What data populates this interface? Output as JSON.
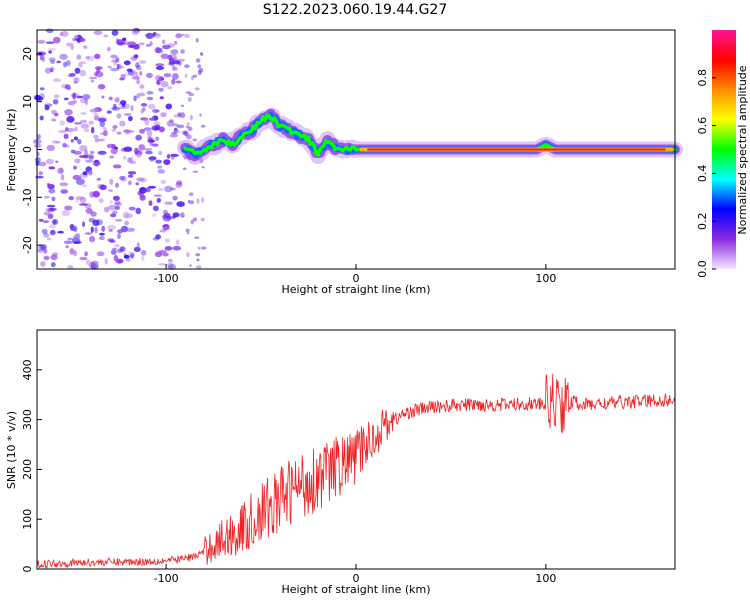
{
  "chart_data": [
    {
      "type": "heatmap",
      "title": "S122.2023.060.19.44.G27",
      "xlabel": "Height of straight line (km)",
      "ylabel": "Frequency (Hz)",
      "xlim": [
        -168,
        168
      ],
      "ylim": [
        -25,
        25
      ],
      "xticks": [
        -100,
        0,
        100
      ],
      "yticks": [
        -20,
        -10,
        0,
        10,
        20
      ],
      "colorbar": {
        "label": "Normalized spectral amplitude",
        "range": [
          0,
          1
        ],
        "ticks": [
          "0.0",
          "0.2",
          "0.4",
          "0.6",
          "0.8"
        ],
        "colormap": [
          "#f4e6ff",
          "#8a2be2",
          "#0000ff",
          "#00ffff",
          "#00ff00",
          "#ffff00",
          "#ff8c00",
          "#ff0000",
          "#ff1493"
        ]
      },
      "ridge": {
        "x": [
          -90,
          -85,
          -80,
          -75,
          -70,
          -65,
          -60,
          -55,
          -50,
          -45,
          -40,
          -35,
          -30,
          -25,
          -20,
          -15,
          -10,
          -5,
          0,
          10,
          20,
          40,
          60,
          80,
          95,
          100,
          105,
          120,
          140,
          168
        ],
        "y": [
          0,
          -1,
          0,
          1,
          2,
          1,
          3,
          4,
          6,
          7,
          5,
          4,
          3,
          2,
          -1,
          2,
          0,
          0,
          0,
          0,
          0,
          0,
          0,
          0,
          0,
          1,
          0,
          0,
          0,
          0
        ]
      }
    },
    {
      "type": "line",
      "xlabel": "Height of straight line (km)",
      "ylabel": "SNR (10 * v/v)",
      "xlim": [
        -168,
        168
      ],
      "ylim": [
        0,
        480
      ],
      "xticks": [
        -100,
        0,
        100
      ],
      "yticks": [
        0,
        100,
        200,
        300,
        400
      ],
      "color": "#ee2222",
      "x": [
        -168,
        -150,
        -130,
        -110,
        -95,
        -85,
        -80,
        -75,
        -70,
        -65,
        -60,
        -55,
        -50,
        -45,
        -40,
        -35,
        -30,
        -25,
        -20,
        -15,
        -10,
        -5,
        0,
        5,
        10,
        15,
        20,
        25,
        30,
        40,
        50,
        60,
        70,
        80,
        90,
        100,
        105,
        108,
        110,
        115,
        120,
        130,
        140,
        150,
        160,
        168
      ],
      "y": [
        10,
        12,
        14,
        15,
        18,
        25,
        35,
        50,
        60,
        70,
        80,
        95,
        110,
        125,
        140,
        155,
        165,
        175,
        185,
        195,
        205,
        215,
        225,
        250,
        265,
        290,
        300,
        310,
        318,
        325,
        328,
        330,
        330,
        330,
        332,
        330,
        340,
        330,
        330,
        335,
        330,
        332,
        335,
        337,
        338,
        340
      ]
    }
  ]
}
